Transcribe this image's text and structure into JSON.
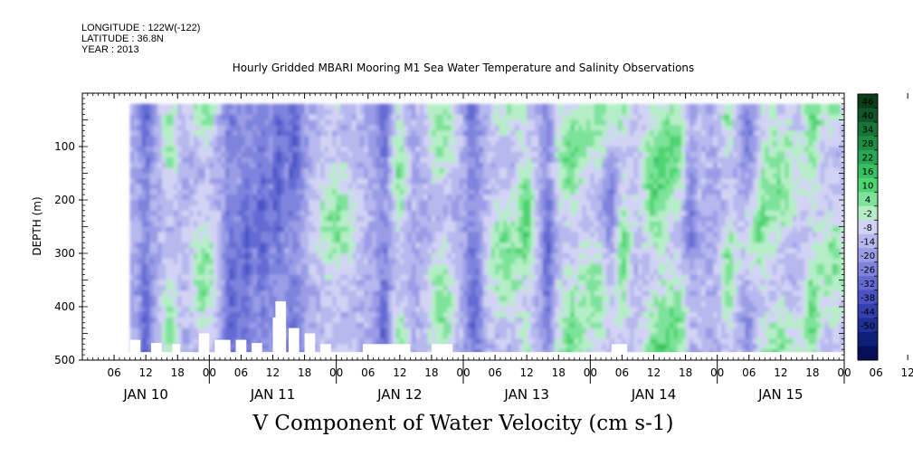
{
  "header": {
    "longitude": "LONGITUDE : 122W(-122)",
    "latitude": "LATITUDE : 36.8N",
    "year": "YEAR : 2013"
  },
  "chart_data": {
    "type": "heatmap",
    "title": "Hourly Gridded MBARI Mooring M1 Sea Water Temperature and Salinity Observations",
    "subtitle": "V Component of Water Velocity (cm s-1)",
    "xlabel": "",
    "ylabel": "DEPTH (m)",
    "x_range_hours": [
      0,
      144
    ],
    "x_hour_ticks": [
      "06",
      "12",
      "18",
      "00",
      "06",
      "12",
      "18",
      "00",
      "06",
      "12",
      "18",
      "00",
      "06",
      "12",
      "18",
      "00",
      "06",
      "12",
      "18",
      "00",
      "06",
      "12",
      "18",
      "00",
      "06",
      "12",
      "18"
    ],
    "x_day_labels": [
      "JAN 10",
      "JAN 11",
      "JAN 12",
      "JAN 13",
      "JAN 14",
      "JAN 15"
    ],
    "ylim": [
      500,
      0
    ],
    "y_ticks": [
      100,
      200,
      300,
      400,
      500
    ],
    "colorbar": {
      "labels": [
        "46",
        "40",
        "34",
        "28",
        "22",
        "16",
        "10",
        "4",
        "-2",
        "-8",
        "-14",
        "-20",
        "-26",
        "-32",
        "-38",
        "-44",
        "-50"
      ],
      "colors": [
        "#0b3d17",
        "#10562a",
        "#177538",
        "#1f8e45",
        "#28a653",
        "#36c062",
        "#4fd472",
        "#7ee39a",
        "#b5eec6",
        "#d2d3f4",
        "#b6b8ee",
        "#9a9de6",
        "#7f83dd",
        "#636ad3",
        "#4a52c4",
        "#3340b0",
        "#1f2f96",
        "#0e1f78",
        "#070f5a"
      ]
    },
    "green_columns_hours": [
      16.5,
      23,
      48,
      60,
      68,
      80,
      84,
      92,
      98,
      102,
      108,
      112,
      122,
      127,
      132,
      138,
      142
    ],
    "blue_columns_hours": [
      12,
      28,
      31,
      34,
      37,
      40,
      57,
      74,
      88,
      100,
      115,
      126
    ],
    "data_start_hour": 9,
    "data_depth_range_m": [
      20,
      485
    ]
  }
}
